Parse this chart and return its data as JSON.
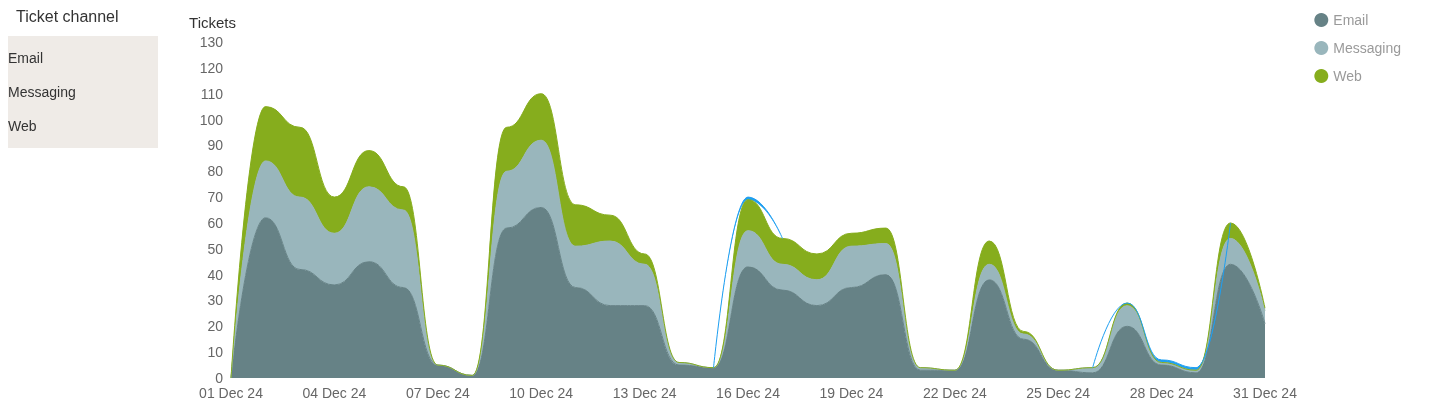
{
  "chart_data": {
    "type": "area",
    "stacked": true,
    "ylabel": "Tickets",
    "ylim": [
      0,
      130
    ],
    "yticks": [
      0,
      10,
      20,
      30,
      40,
      50,
      60,
      70,
      80,
      90,
      100,
      110,
      120,
      130
    ],
    "grid": false,
    "legend": "top right",
    "marker": "none",
    "annotations": [
      "Ticket channel",
      "Email",
      "Messaging",
      "Web"
    ],
    "categories": [
      "01 Dec 24",
      null,
      null,
      "04 Dec 24",
      null,
      null,
      "07 Dec 24",
      null,
      null,
      "10 Dec 24",
      null,
      null,
      "13 Dec 24",
      null,
      null,
      "16 Dec 24",
      null,
      null,
      "19 Dec 24",
      null,
      null,
      "22 Dec 24",
      null,
      null,
      "25 Dec 24",
      null,
      null,
      "28 Dec 24",
      null,
      null,
      "31 Dec 24"
    ],
    "series": [
      {
        "name": "Email",
        "color": "#668286",
        "values": [
          0,
          62,
          42,
          36,
          45,
          35,
          5,
          1,
          58,
          66,
          35,
          28,
          28,
          5,
          4,
          43,
          34,
          28,
          35,
          40,
          3,
          3,
          38,
          15,
          3,
          2,
          20,
          5,
          2,
          44,
          21
        ]
      },
      {
        "name": "Messaging",
        "color": "#99b6bc",
        "values": [
          0,
          22,
          28,
          20,
          29,
          30,
          0,
          0,
          22,
          26,
          16,
          25,
          16,
          1,
          0,
          14,
          10,
          10,
          16,
          12,
          1,
          0,
          6,
          2,
          0,
          2,
          8,
          1,
          1,
          10,
          5
        ]
      },
      {
        "name": "Web",
        "color": "#86ad1d",
        "values": [
          0,
          21,
          27,
          14,
          14,
          9,
          0,
          0,
          17,
          18,
          16,
          10,
          4,
          0,
          0,
          12,
          10,
          10,
          5,
          6,
          0,
          0,
          9,
          1,
          0,
          0,
          1,
          0,
          0,
          6,
          1
        ]
      },
      {
        "color": "#1f9ff0",
        "values": [
          null,
          null,
          null,
          null,
          null,
          null,
          null,
          null,
          null,
          null,
          null,
          null,
          null,
          null,
          0,
          1,
          0,
          null,
          null,
          null,
          null,
          null,
          null,
          null,
          null,
          0,
          0,
          1,
          1,
          0,
          null
        ]
      }
    ]
  }
}
